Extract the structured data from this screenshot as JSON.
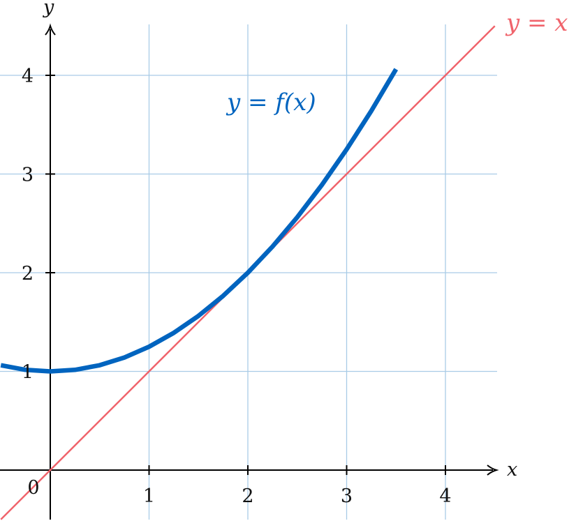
{
  "chart_data": {
    "type": "line",
    "title": "",
    "xlabel": "x",
    "ylabel": "y",
    "xlim": [
      -0.5,
      4.5
    ],
    "ylim": [
      -0.5,
      4.5
    ],
    "xticks": [
      "1",
      "2",
      "3",
      "4"
    ],
    "yticks": [
      "1",
      "2",
      "3",
      "4"
    ],
    "origin_label": "0",
    "grid": true,
    "colors": {
      "grid": "#a9cbe6",
      "axis": "#000000"
    },
    "series": [
      {
        "name": "y = f(x)",
        "color": "#0064bf",
        "x": [
          -0.5,
          -0.25,
          0,
          0.25,
          0.5,
          0.75,
          1,
          1.25,
          1.5,
          1.75,
          2,
          2.25,
          2.5,
          2.75,
          3,
          3.25,
          3.5
        ],
        "y": [
          1.0625,
          1.0156,
          1.0,
          1.0156,
          1.0625,
          1.1406,
          1.25,
          1.3906,
          1.5625,
          1.7656,
          2.0,
          2.2656,
          2.5625,
          2.8906,
          3.25,
          3.6406,
          4.0625
        ]
      },
      {
        "name": "y = x",
        "color": "#f0636b",
        "x": [
          -0.5,
          4.5
        ],
        "y": [
          -0.5,
          4.5
        ]
      }
    ]
  }
}
